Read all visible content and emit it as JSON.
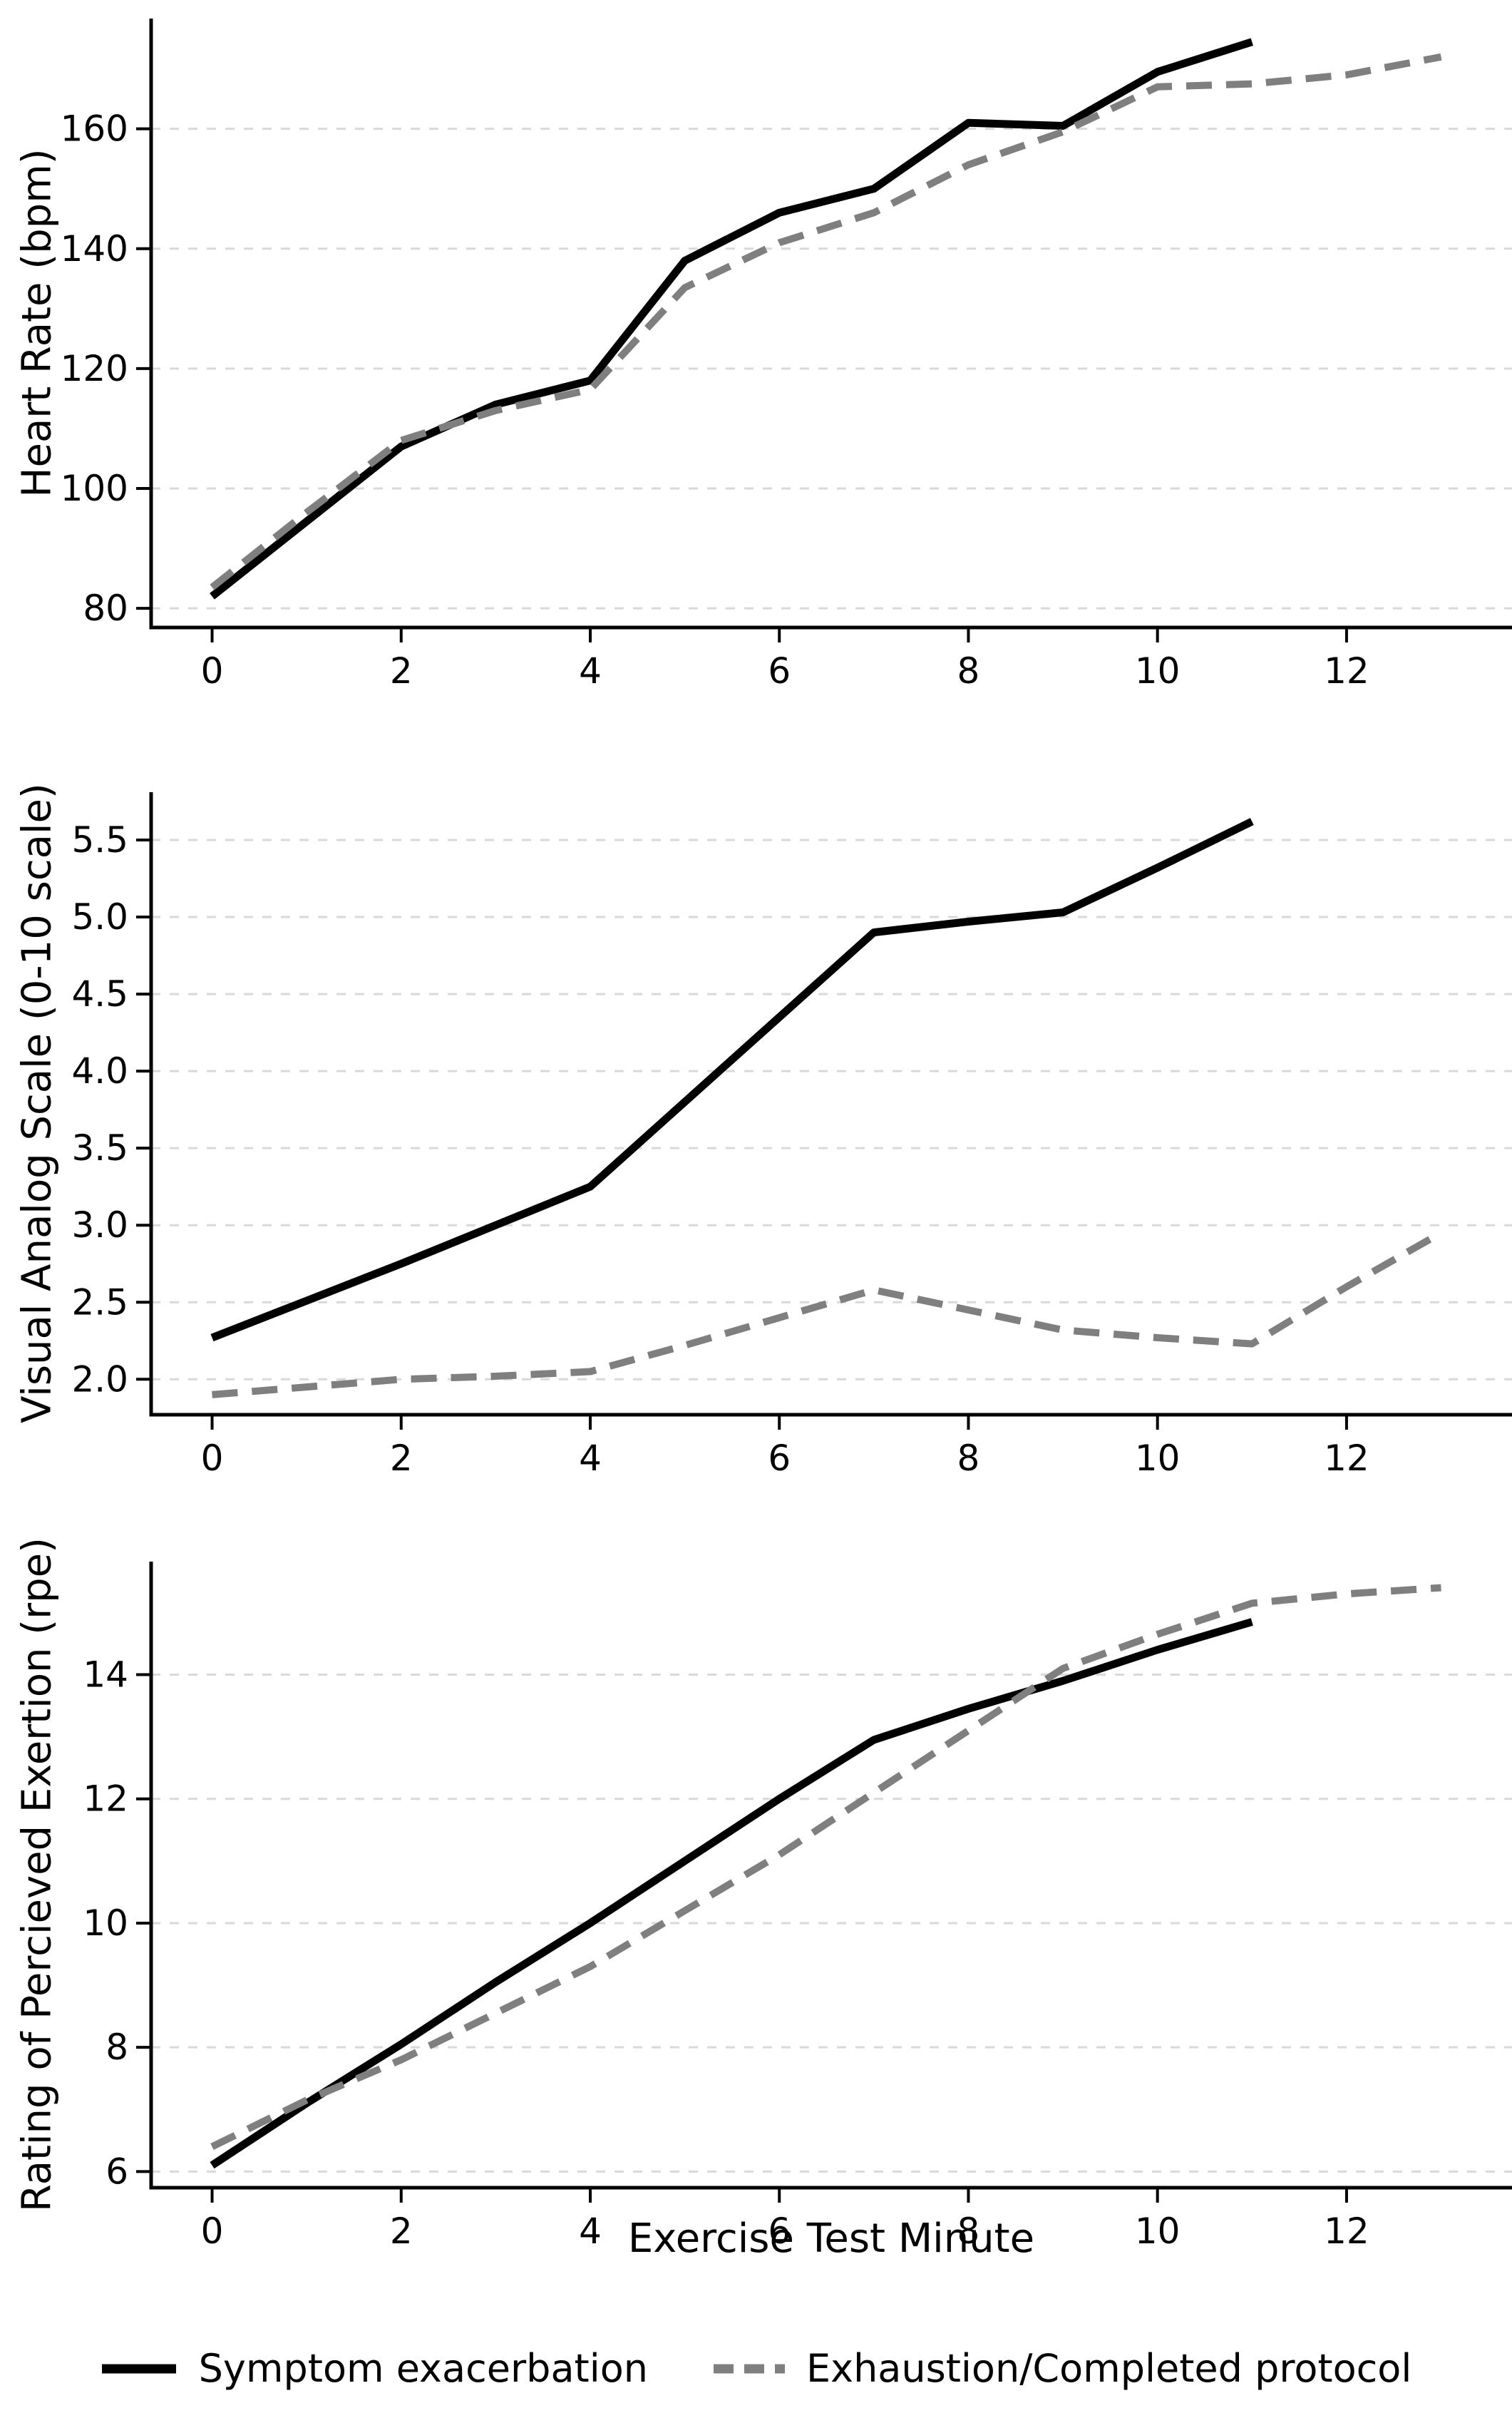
{
  "xlabel": "Exercise Test Minute",
  "colors": {
    "solid_series": "#000000",
    "dashed_series": "#7f7f7f",
    "gridline": "#d9d9d9",
    "axis": "#000000"
  },
  "legend": {
    "items": [
      {
        "id": "symptom-exacerbation",
        "label": "Symptom exacerbation",
        "style": "solid",
        "color": "#000000"
      },
      {
        "id": "exhaustion-completed-protocol",
        "label": "Exhaustion/Completed protocol",
        "style": "dashed",
        "color": "#7f7f7f"
      }
    ]
  },
  "chart_data": [
    {
      "type": "line",
      "title": "",
      "xlabel": "",
      "ylabel": "Heart Rate (bpm)",
      "grid": "horizontal dashed",
      "legend_position": "bottom shared",
      "xlim": [
        -0.645,
        13.75
      ],
      "ylim": [
        76.8,
        178.4
      ],
      "x_ticks": [
        0,
        2,
        4,
        6,
        8,
        10,
        12
      ],
      "x_tick_labels": [
        "0",
        "2",
        "4",
        "6",
        "8",
        "10",
        "12"
      ],
      "y_ticks": [
        80,
        100,
        120,
        140,
        160
      ],
      "y_tick_labels": [
        "80",
        "100",
        "120",
        "140",
        "160"
      ],
      "series": [
        {
          "id": "symptom-exacerbation",
          "name": "Symptom exacerbation",
          "style": "solid",
          "color": "#000000",
          "x": [
            0,
            1,
            2,
            3,
            4,
            5,
            6,
            7,
            8,
            9,
            10,
            11
          ],
          "y": [
            82,
            94.5,
            107,
            114,
            118,
            138,
            146,
            150,
            161,
            160.5,
            169.5,
            174.5
          ]
        },
        {
          "id": "exhaustion-completed-protocol",
          "name": "Exhaustion/Completed protocol",
          "style": "dashed",
          "color": "#7f7f7f",
          "x": [
            0,
            1,
            2,
            3,
            4,
            5,
            6,
            7,
            8,
            9,
            10,
            11,
            12,
            13
          ],
          "y": [
            83.5,
            96,
            108,
            113,
            116.5,
            133.5,
            141,
            146,
            154,
            159.5,
            167,
            167.5,
            169,
            172
          ]
        }
      ]
    },
    {
      "type": "line",
      "title": "",
      "xlabel": "",
      "ylabel": "Visual Analog Scale (0-10 scale)",
      "grid": "horizontal dashed",
      "legend_position": "bottom shared",
      "xlim": [
        -0.645,
        13.75
      ],
      "ylim": [
        1.77,
        5.81
      ],
      "x_ticks": [
        0,
        2,
        4,
        6,
        8,
        10,
        12
      ],
      "x_tick_labels": [
        "0",
        "2",
        "4",
        "6",
        "8",
        "10",
        "12"
      ],
      "y_ticks": [
        2.0,
        2.5,
        3.0,
        3.5,
        4.0,
        4.5,
        5.0,
        5.5
      ],
      "y_tick_labels": [
        "2.0",
        "2.5",
        "3.0",
        "3.5",
        "4.0",
        "4.5",
        "5.0",
        "5.5"
      ],
      "series": [
        {
          "id": "symptom-exacerbation",
          "name": "Symptom exacerbation",
          "style": "solid",
          "color": "#000000",
          "x": [
            0,
            1,
            2,
            3,
            4,
            5,
            6,
            7,
            8,
            9,
            10,
            11
          ],
          "y": [
            2.27,
            2.51,
            2.75,
            3.0,
            3.25,
            3.8,
            4.35,
            4.9,
            4.97,
            5.03,
            5.32,
            5.62
          ]
        },
        {
          "id": "exhaustion-completed-protocol",
          "name": "Exhaustion/Completed protocol",
          "style": "dashed",
          "color": "#7f7f7f",
          "x": [
            0,
            1,
            2,
            3,
            4,
            5,
            6,
            7,
            8,
            9,
            10,
            11,
            12,
            13
          ],
          "y": [
            1.9,
            1.95,
            2.0,
            2.02,
            2.05,
            2.22,
            2.4,
            2.58,
            2.45,
            2.32,
            2.27,
            2.23,
            2.6,
            2.95
          ]
        }
      ]
    },
    {
      "type": "line",
      "title": "",
      "xlabel": "Exercise Test Minute",
      "ylabel": "Rating of Percieved Exertion (rpe)",
      "grid": "horizontal dashed",
      "legend_position": "bottom shared",
      "xlim": [
        -0.645,
        13.75
      ],
      "ylim": [
        5.74,
        15.82
      ],
      "x_ticks": [
        0,
        2,
        4,
        6,
        8,
        10,
        12
      ],
      "x_tick_labels": [
        "0",
        "2",
        "4",
        "6",
        "8",
        "10",
        "12"
      ],
      "y_ticks": [
        6,
        8,
        10,
        12,
        14
      ],
      "y_tick_labels": [
        "6",
        "8",
        "10",
        "12",
        "14"
      ],
      "series": [
        {
          "id": "symptom-exacerbation",
          "name": "Symptom exacerbation",
          "style": "solid",
          "color": "#000000",
          "x": [
            0,
            1,
            2,
            3,
            4,
            5,
            6,
            7,
            8,
            9,
            10,
            11
          ],
          "y": [
            6.1,
            7.1,
            8.05,
            9.05,
            10.0,
            11.0,
            12.0,
            12.95,
            13.45,
            13.9,
            14.4,
            14.85
          ]
        },
        {
          "id": "exhaustion-completed-protocol",
          "name": "Exhaustion/Completed protocol",
          "style": "dashed",
          "color": "#7f7f7f",
          "x": [
            0,
            1,
            2,
            3,
            4,
            5,
            6,
            7,
            8,
            9,
            10,
            11,
            12,
            13
          ],
          "y": [
            6.4,
            7.15,
            7.8,
            8.55,
            9.3,
            10.2,
            11.1,
            12.1,
            13.1,
            14.1,
            14.65,
            15.15,
            15.3,
            15.4
          ]
        }
      ]
    }
  ]
}
